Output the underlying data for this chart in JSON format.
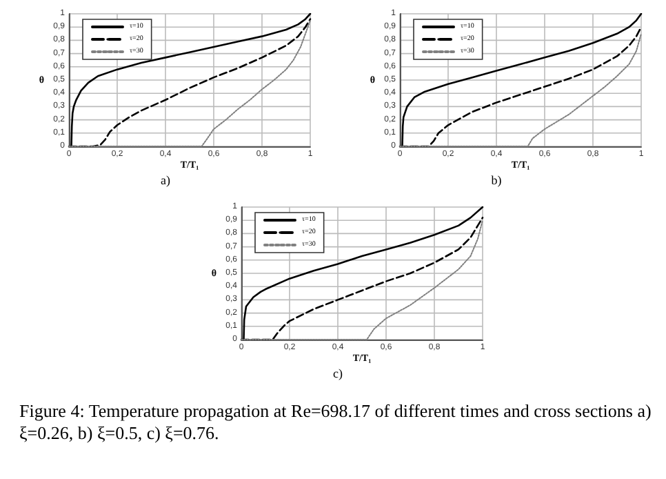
{
  "chart_data": [
    {
      "type": "line",
      "title": "a)",
      "xlabel": "T/T₁",
      "ylabel": "θ",
      "xlim": [
        0,
        1
      ],
      "ylim": [
        0,
        1
      ],
      "xticks": [
        {
          "value": 0,
          "label": "0"
        },
        {
          "value": 0.2,
          "label": "0,2"
        },
        {
          "value": 0.4,
          "label": "0,4"
        },
        {
          "value": 0.6,
          "label": "0,6"
        },
        {
          "value": 0.8,
          "label": "0,8"
        },
        {
          "value": 1,
          "label": "1"
        }
      ],
      "yticks": [
        {
          "value": 0,
          "label": "0"
        },
        {
          "value": 0.1,
          "label": "0,1"
        },
        {
          "value": 0.2,
          "label": "0,2"
        },
        {
          "value": 0.3,
          "label": "0,3"
        },
        {
          "value": 0.4,
          "label": "0,4"
        },
        {
          "value": 0.5,
          "label": "0,5"
        },
        {
          "value": 0.6,
          "label": "0,6"
        },
        {
          "value": 0.7,
          "label": "0,7"
        },
        {
          "value": 0.8,
          "label": "0,8"
        },
        {
          "value": 0.9,
          "label": "0,9"
        },
        {
          "value": 1,
          "label": "1"
        }
      ],
      "grid": true,
      "legend": "top left",
      "marker": "none",
      "series": [
        {
          "name": "τ=10",
          "color": "#000000",
          "line_style": "solid",
          "x": [
            0.01,
            0.012,
            0.015,
            0.02,
            0.03,
            0.05,
            0.08,
            0.12,
            0.2,
            0.3,
            0.4,
            0.5,
            0.6,
            0.7,
            0.8,
            0.9,
            0.95,
            0.98,
            1
          ],
          "values": [
            0,
            0.15,
            0.25,
            0.3,
            0.35,
            0.42,
            0.48,
            0.53,
            0.58,
            0.63,
            0.67,
            0.71,
            0.75,
            0.79,
            0.83,
            0.88,
            0.92,
            0.96,
            1
          ]
        },
        {
          "name": "τ=20",
          "color": "#000000",
          "line_style": "dashed",
          "x": [
            0,
            0.1,
            0.13,
            0.15,
            0.17,
            0.2,
            0.25,
            0.3,
            0.4,
            0.5,
            0.6,
            0.7,
            0.8,
            0.9,
            0.95,
            0.98,
            1
          ],
          "values": [
            0,
            0,
            0.01,
            0.05,
            0.11,
            0.16,
            0.22,
            0.27,
            0.35,
            0.44,
            0.52,
            0.59,
            0.67,
            0.76,
            0.83,
            0.9,
            0.96
          ]
        },
        {
          "name": "τ=30",
          "color": "#808080",
          "line_style": "dotted",
          "x": [
            0,
            0.55,
            0.57,
            0.6,
            0.65,
            0.7,
            0.75,
            0.8,
            0.85,
            0.9,
            0.93,
            0.96,
            0.98,
            1
          ],
          "values": [
            0,
            0,
            0.05,
            0.13,
            0.2,
            0.28,
            0.35,
            0.43,
            0.5,
            0.58,
            0.65,
            0.75,
            0.85,
            0.95
          ]
        }
      ]
    },
    {
      "type": "line",
      "title": "b)",
      "xlabel": "T/T₁",
      "ylabel": "θ",
      "xlim": [
        0,
        1
      ],
      "ylim": [
        0,
        1
      ],
      "xticks": [
        {
          "value": 0,
          "label": "0"
        },
        {
          "value": 0.2,
          "label": "0,2"
        },
        {
          "value": 0.4,
          "label": "0,4"
        },
        {
          "value": 0.6,
          "label": "0,6"
        },
        {
          "value": 0.8,
          "label": "0,8"
        },
        {
          "value": 1,
          "label": "1"
        }
      ],
      "yticks": [
        {
          "value": 0,
          "label": "0"
        },
        {
          "value": 0.1,
          "label": "0,1"
        },
        {
          "value": 0.2,
          "label": "0,2"
        },
        {
          "value": 0.3,
          "label": "0,3"
        },
        {
          "value": 0.4,
          "label": "0,4"
        },
        {
          "value": 0.5,
          "label": "0,5"
        },
        {
          "value": 0.6,
          "label": "0,6"
        },
        {
          "value": 0.7,
          "label": "0,7"
        },
        {
          "value": 0.8,
          "label": "0,8"
        },
        {
          "value": 0.9,
          "label": "0,9"
        },
        {
          "value": 1,
          "label": "1"
        }
      ],
      "grid": true,
      "legend": "top left",
      "marker": "none",
      "series": [
        {
          "name": "τ=10",
          "color": "#000000",
          "line_style": "solid",
          "x": [
            0.01,
            0.012,
            0.015,
            0.03,
            0.06,
            0.1,
            0.2,
            0.3,
            0.4,
            0.5,
            0.6,
            0.7,
            0.8,
            0.9,
            0.95,
            0.98,
            1
          ],
          "values": [
            0,
            0.15,
            0.22,
            0.3,
            0.37,
            0.41,
            0.47,
            0.52,
            0.57,
            0.62,
            0.67,
            0.72,
            0.78,
            0.85,
            0.9,
            0.95,
            1
          ]
        },
        {
          "name": "τ=20",
          "color": "#000000",
          "line_style": "dashed",
          "x": [
            0,
            0.12,
            0.14,
            0.16,
            0.2,
            0.3,
            0.4,
            0.5,
            0.6,
            0.7,
            0.8,
            0.9,
            0.95,
            0.98,
            1
          ],
          "values": [
            0,
            0,
            0.04,
            0.1,
            0.16,
            0.26,
            0.33,
            0.39,
            0.45,
            0.51,
            0.58,
            0.68,
            0.76,
            0.83,
            0.9
          ]
        },
        {
          "name": "τ=30",
          "color": "#808080",
          "line_style": "dotted",
          "x": [
            0,
            0.53,
            0.55,
            0.6,
            0.7,
            0.8,
            0.85,
            0.9,
            0.95,
            0.98,
            1
          ],
          "values": [
            0,
            0,
            0.06,
            0.13,
            0.24,
            0.38,
            0.45,
            0.53,
            0.62,
            0.72,
            0.85
          ]
        }
      ]
    },
    {
      "type": "line",
      "title": "c)",
      "xlabel": "T/T₁",
      "ylabel": "θ",
      "xlim": [
        0,
        1
      ],
      "ylim": [
        0,
        1
      ],
      "xticks": [
        {
          "value": 0,
          "label": "0"
        },
        {
          "value": 0.2,
          "label": "0,2"
        },
        {
          "value": 0.4,
          "label": "0,4"
        },
        {
          "value": 0.6,
          "label": "0,6"
        },
        {
          "value": 0.8,
          "label": "0,8"
        },
        {
          "value": 1,
          "label": "1"
        }
      ],
      "yticks": [
        {
          "value": 0,
          "label": "0"
        },
        {
          "value": 0.1,
          "label": "0,1"
        },
        {
          "value": 0.2,
          "label": "0,2"
        },
        {
          "value": 0.3,
          "label": "0,3"
        },
        {
          "value": 0.4,
          "label": "0,4"
        },
        {
          "value": 0.5,
          "label": "0,5"
        },
        {
          "value": 0.6,
          "label": "0,6"
        },
        {
          "value": 0.7,
          "label": "0,7"
        },
        {
          "value": 0.8,
          "label": "0,8"
        },
        {
          "value": 0.9,
          "label": "0,9"
        },
        {
          "value": 1,
          "label": "1"
        }
      ],
      "grid": true,
      "legend": "top left",
      "marker": "none",
      "annotations": [
        "Figure 4: Temperature propagation at Re=698.17 of different times and cross sections a) ξ=0.26, b) ξ=0.5, c) ξ=0.76."
      ],
      "series": [
        {
          "name": "τ=10",
          "color": "#000000",
          "line_style": "solid",
          "x": [
            0.01,
            0.012,
            0.02,
            0.05,
            0.08,
            0.1,
            0.2,
            0.3,
            0.4,
            0.5,
            0.6,
            0.7,
            0.8,
            0.9,
            0.95,
            1
          ],
          "values": [
            0,
            0.15,
            0.25,
            0.32,
            0.36,
            0.38,
            0.46,
            0.52,
            0.57,
            0.63,
            0.68,
            0.73,
            0.79,
            0.86,
            0.92,
            1
          ]
        },
        {
          "name": "τ=20",
          "color": "#000000",
          "line_style": "dashed",
          "x": [
            0,
            0.13,
            0.15,
            0.18,
            0.2,
            0.3,
            0.4,
            0.5,
            0.6,
            0.7,
            0.8,
            0.9,
            0.95,
            0.98,
            1
          ],
          "values": [
            0,
            0,
            0.05,
            0.11,
            0.14,
            0.23,
            0.3,
            0.37,
            0.44,
            0.5,
            0.58,
            0.68,
            0.77,
            0.86,
            0.92
          ]
        },
        {
          "name": "τ=30",
          "color": "#808080",
          "line_style": "dotted",
          "x": [
            0,
            0.52,
            0.55,
            0.6,
            0.7,
            0.8,
            0.9,
            0.95,
            0.98,
            1
          ],
          "values": [
            0,
            0,
            0.08,
            0.16,
            0.26,
            0.39,
            0.53,
            0.63,
            0.76,
            0.9
          ]
        }
      ]
    }
  ]
}
